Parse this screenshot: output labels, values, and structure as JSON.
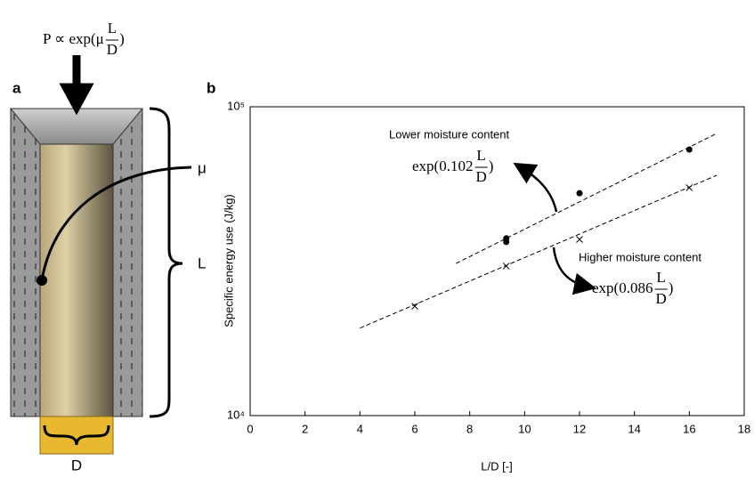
{
  "diagram": {
    "panel_label": "a",
    "force_formula": {
      "prefix": "P ∝ exp(μ",
      "numerator": "L",
      "denominator": "D",
      "suffix": ")"
    },
    "friction_label": "μ",
    "length_label": "L",
    "diameter_label": "D"
  },
  "chart_data": {
    "type": "scatter",
    "panel_label": "b",
    "x_label": "L/D [-]",
    "y_label": "Specific energy use (J/kg)",
    "xlim": [
      0,
      18
    ],
    "xticks": [
      0,
      2,
      4,
      6,
      8,
      10,
      12,
      14,
      16,
      18
    ],
    "ylim": [
      10000,
      100000
    ],
    "log_y": true,
    "yticks": [
      {
        "value": 10000,
        "label": "10⁴"
      },
      {
        "value": 100000,
        "label": "10⁵"
      }
    ],
    "grid": false,
    "series": [
      {
        "name": "Lower moisture content",
        "marker": "dot",
        "color": "#000000",
        "x": [
          9.33,
          9.33,
          12,
          16
        ],
        "values": [
          37500,
          36500,
          52500,
          72700
        ],
        "fit": {
          "x": [
            7.5,
            17
          ],
          "values": [
            31100,
            82000
          ]
        },
        "equation": {
          "prefix": "exp(0.102",
          "numerator": "L",
          "denominator": "D",
          "suffix": ")"
        }
      },
      {
        "name": "Higher moisture content",
        "marker": "cross",
        "color": "#000000",
        "x": [
          6,
          9.33,
          12,
          16
        ],
        "values": [
          22600,
          30500,
          37200,
          54700
        ],
        "fit": {
          "x": [
            4,
            17
          ],
          "values": [
            19200,
            60000
          ]
        },
        "equation": {
          "prefix": "exp(0.086",
          "numerator": "L",
          "denominator": "D",
          "suffix": ")"
        }
      }
    ]
  }
}
